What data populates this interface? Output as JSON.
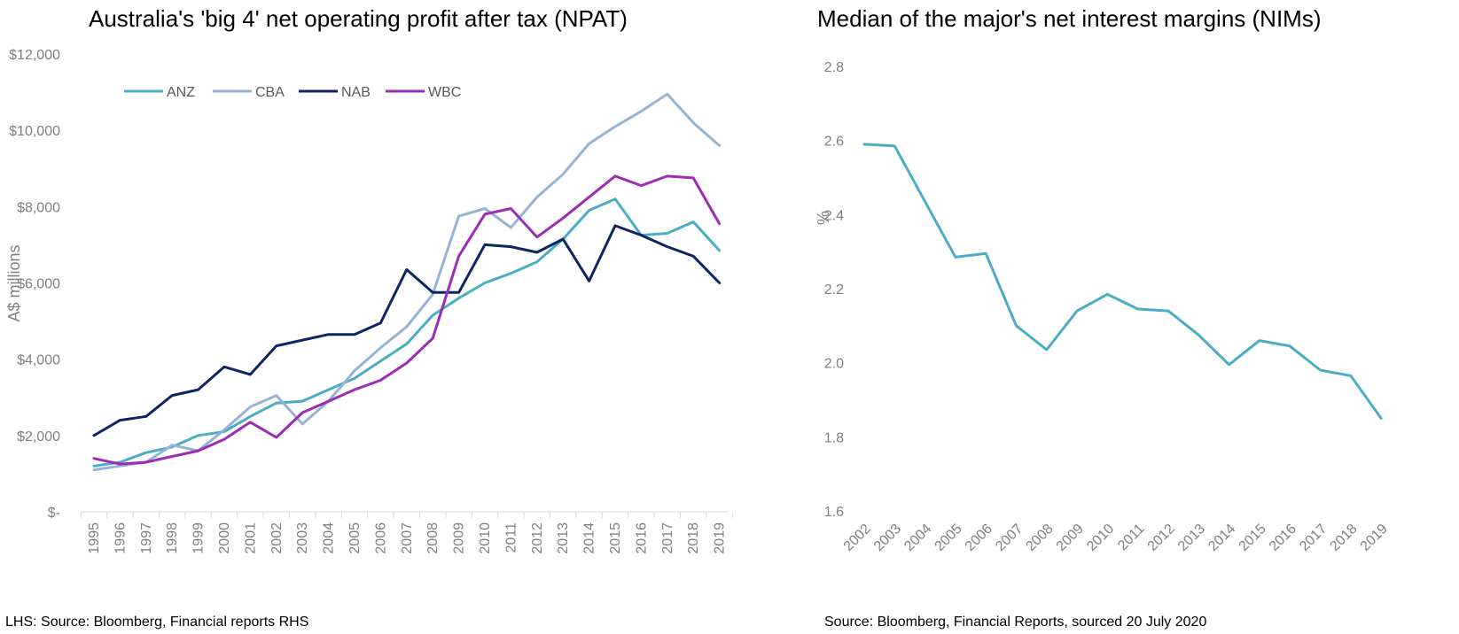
{
  "chart_data": [
    {
      "type": "line",
      "title": "Australia's 'big 4' net operating profit after tax (NPAT)",
      "ylabel": "A$ millions",
      "xlabel": "",
      "ylim": [
        0,
        12000
      ],
      "yticks": [
        0,
        2000,
        4000,
        6000,
        8000,
        10000,
        12000
      ],
      "ytick_labels": [
        "$-",
        "$2,000",
        "$4,000",
        "$6,000",
        "$8,000",
        "$10,000",
        "$12,000"
      ],
      "categories": [
        "1995",
        "1996",
        "1997",
        "1998",
        "1999",
        "2000",
        "2001",
        "2002",
        "2003",
        "2004",
        "2005",
        "2006",
        "2007",
        "2008",
        "2009",
        "2010",
        "2011",
        "2012",
        "2013",
        "2014",
        "2015",
        "2016",
        "2017",
        "2018",
        "2019"
      ],
      "legend_position": "top",
      "grid": false,
      "series": [
        {
          "name": "ANZ",
          "color": "#4bacc6",
          "values": [
            1200,
            1300,
            1550,
            1700,
            2000,
            2100,
            2500,
            2850,
            2900,
            3200,
            3500,
            3950,
            4400,
            5150,
            5600,
            6000,
            6250,
            6550,
            7150,
            7900,
            8200,
            7250,
            7300,
            7600,
            6850
          ]
        },
        {
          "name": "CBA",
          "color": "#95b3d7",
          "values": [
            1100,
            1200,
            1300,
            1750,
            1600,
            2150,
            2750,
            3050,
            2300,
            2900,
            3700,
            4300,
            4850,
            5700,
            7750,
            7950,
            7450,
            8250,
            8850,
            9650,
            10100,
            10500,
            10950,
            10200,
            9600
          ]
        },
        {
          "name": "NAB",
          "color": "#0e2565",
          "values": [
            2000,
            2400,
            2500,
            3050,
            3200,
            3800,
            3600,
            4350,
            4500,
            4650,
            4650,
            4950,
            6350,
            5750,
            5750,
            7000,
            6950,
            6800,
            7150,
            6050,
            7500,
            7250,
            6950,
            6700,
            6000
          ]
        },
        {
          "name": "WBC",
          "color": "#9b2cb5",
          "values": [
            1400,
            1250,
            1300,
            1450,
            1600,
            1900,
            2350,
            1950,
            2600,
            2900,
            3200,
            3450,
            3900,
            4550,
            6700,
            7800,
            7950,
            7200,
            7700,
            8250,
            8800,
            8550,
            8800,
            8750,
            7550
          ]
        }
      ]
    },
    {
      "type": "line",
      "title": "Median of the major's net interest margins (NIMs)",
      "ylabel": "%",
      "xlabel": "",
      "ylim": [
        1.6,
        2.8
      ],
      "yticks": [
        1.6,
        1.8,
        2.0,
        2.2,
        2.4,
        2.6,
        2.8
      ],
      "ytick_labels": [
        "1.6",
        "1.8",
        "2.0",
        "2.2",
        "2.4",
        "2.6",
        "2.8"
      ],
      "categories": [
        "2002",
        "2003",
        "2004",
        "2005",
        "2006",
        "2007",
        "2008",
        "2009",
        "2010",
        "2011",
        "2012",
        "2013",
        "2014",
        "2015",
        "2016",
        "2017",
        "2018",
        "2019"
      ],
      "grid": false,
      "series": [
        {
          "color": "#4bacc6",
          "values": [
            2.59,
            2.585,
            2.435,
            2.285,
            2.295,
            2.1,
            2.035,
            2.14,
            2.185,
            2.145,
            2.14,
            2.075,
            1.995,
            2.06,
            2.045,
            1.98,
            1.965,
            1.85
          ]
        }
      ]
    }
  ],
  "sources": {
    "left": "LHS: Source: Bloomberg, Financial reports RHS",
    "right": "Source: Bloomberg, Financial Reports, sourced 20 July 2020"
  }
}
